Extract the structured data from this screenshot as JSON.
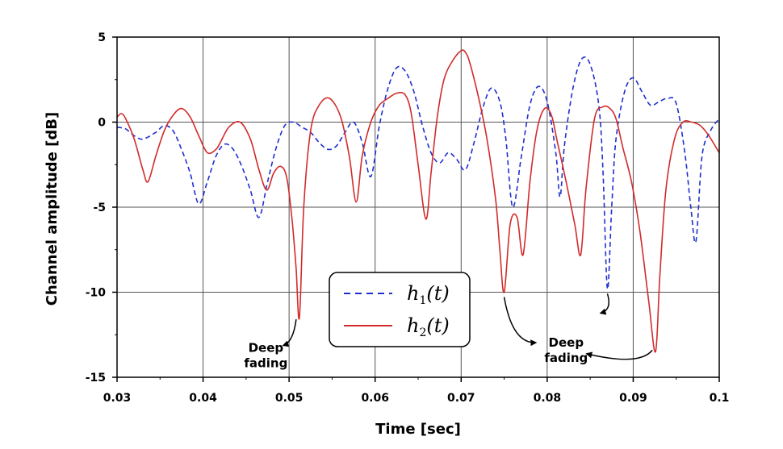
{
  "chart_data": {
    "type": "line",
    "title": "",
    "xlabel": "Time [sec]",
    "ylabel": "Channel amplitude [dB]",
    "xlim": [
      0.03,
      0.1
    ],
    "ylim": [
      -15,
      5
    ],
    "xticks": [
      0.03,
      0.04,
      0.05,
      0.06,
      0.07,
      0.08,
      0.09,
      0.1
    ],
    "xtick_labels": [
      "0.03",
      "0.04",
      "0.05",
      "0.06",
      "0.07",
      "0.08",
      "0.09",
      "0.1"
    ],
    "yticks": [
      5,
      0,
      -5,
      -10,
      -15
    ],
    "ytick_labels": [
      "5",
      "0",
      "-5",
      "-10",
      "-15"
    ],
    "grid": true,
    "legend": {
      "position": "center-bottom",
      "entries": [
        {
          "symbol": "h",
          "subscript": "1",
          "arg": "(t)",
          "series_index": 0
        },
        {
          "symbol": "h",
          "subscript": "2",
          "arg": "(t)",
          "series_index": 1
        }
      ]
    },
    "series": [
      {
        "label_symbol": "h",
        "label_subscript": "1",
        "label_arg": "(t)",
        "color": "#1f2fcf",
        "style": "dashed",
        "x": [
          0.03,
          0.031,
          0.032,
          0.033,
          0.0345,
          0.0355,
          0.0365,
          0.0375,
          0.0385,
          0.0395,
          0.0405,
          0.0415,
          0.0425,
          0.0435,
          0.0445,
          0.0455,
          0.0465,
          0.0475,
          0.0485,
          0.0495,
          0.0505,
          0.0515,
          0.0525,
          0.0535,
          0.0545,
          0.0555,
          0.0565,
          0.0575,
          0.0585,
          0.0595,
          0.0605,
          0.0615,
          0.0625,
          0.0635,
          0.0645,
          0.0655,
          0.0665,
          0.0675,
          0.0685,
          0.0695,
          0.0705,
          0.0715,
          0.0725,
          0.0735,
          0.0745,
          0.0752,
          0.076,
          0.077,
          0.078,
          0.079,
          0.08,
          0.081,
          0.0815,
          0.082,
          0.083,
          0.084,
          0.085,
          0.086,
          0.0865,
          0.087,
          0.0875,
          0.088,
          0.089,
          0.09,
          0.091,
          0.092,
          0.093,
          0.094,
          0.095,
          0.096,
          0.0967,
          0.0973,
          0.098,
          0.099,
          0.1
        ],
        "y": [
          -0.3,
          -0.4,
          -0.8,
          -1.0,
          -0.6,
          -0.2,
          -0.5,
          -1.6,
          -3.0,
          -4.8,
          -3.5,
          -2.0,
          -1.3,
          -1.6,
          -2.6,
          -4.0,
          -5.6,
          -3.5,
          -1.5,
          -0.2,
          0.0,
          -0.3,
          -0.6,
          -1.2,
          -1.6,
          -1.4,
          -0.6,
          0.0,
          -1.2,
          -3.2,
          -0.2,
          2.0,
          3.2,
          3.0,
          1.8,
          -0.2,
          -1.8,
          -2.4,
          -1.8,
          -2.2,
          -2.8,
          -1.2,
          0.8,
          2.0,
          1.2,
          -1.0,
          -5.0,
          -2.0,
          1.0,
          2.1,
          1.2,
          -1.8,
          -4.4,
          -1.4,
          2.0,
          3.7,
          3.4,
          1.0,
          -3.0,
          -9.8,
          -5.0,
          -1.0,
          1.8,
          2.6,
          1.8,
          1.0,
          1.2,
          1.4,
          1.1,
          -1.8,
          -5.0,
          -7.0,
          -2.0,
          -0.5,
          0.2
        ]
      },
      {
        "label_symbol": "h",
        "label_subscript": "2",
        "label_arg": "(t)",
        "color": "#d22b2b",
        "style": "solid",
        "x": [
          0.03,
          0.0305,
          0.031,
          0.032,
          0.033,
          0.0336,
          0.0345,
          0.0355,
          0.0365,
          0.0375,
          0.0385,
          0.0395,
          0.0405,
          0.0415,
          0.042,
          0.043,
          0.0443,
          0.0455,
          0.0465,
          0.0474,
          0.0482,
          0.049,
          0.0497,
          0.0503,
          0.0508,
          0.0512,
          0.0517,
          0.0525,
          0.0535,
          0.0547,
          0.056,
          0.057,
          0.0578,
          0.0585,
          0.0595,
          0.0605,
          0.0615,
          0.0625,
          0.0635,
          0.0642,
          0.065,
          0.0659,
          0.0665,
          0.0672,
          0.068,
          0.069,
          0.07,
          0.0705,
          0.071,
          0.072,
          0.073,
          0.074,
          0.0745,
          0.075,
          0.0757,
          0.0765,
          0.0772,
          0.078,
          0.0788,
          0.0797,
          0.0805,
          0.0812,
          0.0822,
          0.0832,
          0.0839,
          0.0845,
          0.0855,
          0.0865,
          0.0873,
          0.088,
          0.0888,
          0.0898,
          0.0908,
          0.0918,
          0.0926,
          0.0931,
          0.0938,
          0.0948,
          0.0958,
          0.0968,
          0.0978,
          0.0988,
          0.1
        ],
        "y": [
          0.3,
          0.5,
          0.2,
          -1.0,
          -2.8,
          -3.5,
          -2.0,
          -0.5,
          0.4,
          0.8,
          0.3,
          -0.8,
          -1.8,
          -1.6,
          -1.2,
          -0.3,
          0.0,
          -1.0,
          -2.8,
          -4.0,
          -3.0,
          -2.6,
          -3.2,
          -5.5,
          -8.5,
          -11.5,
          -5.0,
          -0.5,
          1.0,
          1.4,
          0.3,
          -2.0,
          -4.7,
          -2.0,
          0.0,
          1.0,
          1.4,
          1.7,
          1.6,
          0.5,
          -2.5,
          -5.7,
          -3.0,
          0.2,
          2.5,
          3.6,
          4.2,
          4.1,
          3.5,
          1.5,
          -1.0,
          -4.5,
          -7.5,
          -10.0,
          -6.0,
          -5.6,
          -7.8,
          -3.5,
          -0.5,
          0.8,
          0.4,
          -1.2,
          -3.5,
          -6.0,
          -7.8,
          -4.0,
          0.2,
          0.9,
          0.8,
          0.2,
          -1.5,
          -3.5,
          -6.5,
          -10.5,
          -13.5,
          -9.0,
          -4.0,
          -1.0,
          0.0,
          0.0,
          -0.2,
          -0.8,
          -1.8
        ]
      }
    ],
    "annotations": [
      {
        "lines": [
          "Deep",
          "fading"
        ],
        "x": 0.0473,
        "y": -13.5,
        "points_to": [
          {
            "x": 0.0512,
            "y": -11.5
          }
        ]
      },
      {
        "lines": [
          "Deep",
          "fading"
        ],
        "x": 0.0822,
        "y": -13.2,
        "points_to": [
          {
            "x": 0.075,
            "y": -10.0
          },
          {
            "x": 0.087,
            "y": -9.8
          },
          {
            "x": 0.0926,
            "y": -13.5
          }
        ]
      }
    ]
  }
}
